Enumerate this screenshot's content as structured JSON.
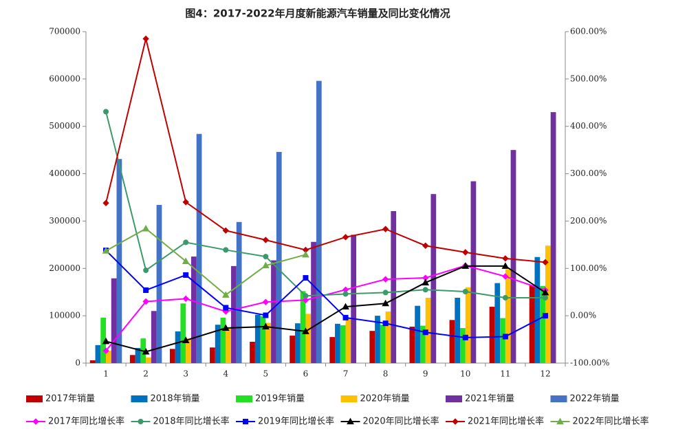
{
  "chart_data": {
    "type": "combo",
    "title": "图4：2017-2022年月度新能源汽车销量及同比变化情况",
    "categories": [
      "1",
      "2",
      "3",
      "4",
      "5",
      "6",
      "7",
      "8",
      "9",
      "10",
      "11",
      "12"
    ],
    "ylim": [
      0,
      700000
    ],
    "yticks": [
      0,
      100000,
      200000,
      300000,
      400000,
      500000,
      600000,
      700000
    ],
    "y2lim": [
      -100,
      600
    ],
    "y2ticks": [
      {
        "value": -100,
        "label": "-100.00%"
      },
      {
        "value": 0,
        "label": "0.00%"
      },
      {
        "value": 100,
        "label": "100.00%"
      },
      {
        "value": 200,
        "label": "200.00%"
      },
      {
        "value": 300,
        "label": "300.00%"
      },
      {
        "value": 400,
        "label": "400.00%"
      },
      {
        "value": 500,
        "label": "500.00%"
      },
      {
        "value": 600,
        "label": "600.00%"
      }
    ],
    "series": [
      {
        "name": "2017年销量",
        "type": "bar",
        "color": "#c00000",
        "values": [
          6000,
          17000,
          30000,
          33000,
          45000,
          58000,
          55000,
          68000,
          77000,
          91000,
          119000,
          164000
        ]
      },
      {
        "name": "2018年销量",
        "type": "bar",
        "color": "#0070c0",
        "values": [
          38000,
          32000,
          67000,
          81000,
          102000,
          84000,
          83000,
          100000,
          121000,
          138000,
          169000,
          224000
        ]
      },
      {
        "name": "2019年销量",
        "type": "bar",
        "color": "#22e022",
        "values": [
          96000,
          52000,
          126000,
          96000,
          99000,
          152000,
          80000,
          81000,
          79000,
          74000,
          95000,
          163000
        ]
      },
      {
        "name": "2020年销量",
        "type": "bar",
        "color": "#ffc000",
        "values": [
          26000,
          12000,
          52000,
          75000,
          85000,
          104000,
          95000,
          109000,
          138000,
          160000,
          198000,
          248000
        ]
      },
      {
        "name": "2021年销量",
        "type": "bar",
        "color": "#7030a0",
        "values": [
          179000,
          110000,
          225000,
          205000,
          217000,
          256000,
          271000,
          321000,
          357000,
          384000,
          450000,
          530000
        ]
      },
      {
        "name": "2022年销量",
        "type": "bar",
        "color": "#4472c4",
        "values": [
          431000,
          334000,
          484000,
          298000,
          446000,
          596000,
          null,
          null,
          null,
          null,
          null,
          null
        ]
      },
      {
        "name": "2017年同比增长率",
        "type": "line",
        "axis": "y2",
        "color": "#ff00ff",
        "marker": "diamond",
        "values": [
          -74,
          30,
          36,
          9,
          29,
          33,
          55,
          77,
          80,
          106,
          83,
          54
        ]
      },
      {
        "name": "2018年同比增长率",
        "type": "line",
        "axis": "y2",
        "color": "#3a9a6a",
        "marker": "circle",
        "values": [
          431,
          96,
          155,
          139,
          125,
          42,
          46,
          49,
          55,
          51,
          38,
          38
        ]
      },
      {
        "name": "2019年同比增长率",
        "type": "line",
        "axis": "y2",
        "color": "#0000ff",
        "marker": "square",
        "values": [
          138,
          54,
          86,
          17,
          1,
          80,
          -4,
          -16,
          -35,
          -46,
          -44,
          0
        ]
      },
      {
        "name": "2020年同比增长率",
        "type": "line",
        "axis": "y2",
        "color": "#000000",
        "marker": "triangle",
        "values": [
          -54,
          -76,
          -52,
          -26,
          -23,
          -33,
          19,
          26,
          70,
          105,
          105,
          49
        ]
      },
      {
        "name": "2021年同比增长率",
        "type": "line",
        "axis": "y2",
        "color": "#c00000",
        "marker": "diamond",
        "values": [
          238,
          585,
          240,
          180,
          160,
          139,
          166,
          183,
          148,
          134,
          121,
          113
        ]
      },
      {
        "name": "2022年同比增长率",
        "type": "line",
        "axis": "y2",
        "color": "#70ad47",
        "marker": "triangle",
        "values": [
          137,
          184,
          115,
          44,
          106,
          129,
          null,
          null,
          null,
          null,
          null,
          null
        ]
      }
    ]
  }
}
